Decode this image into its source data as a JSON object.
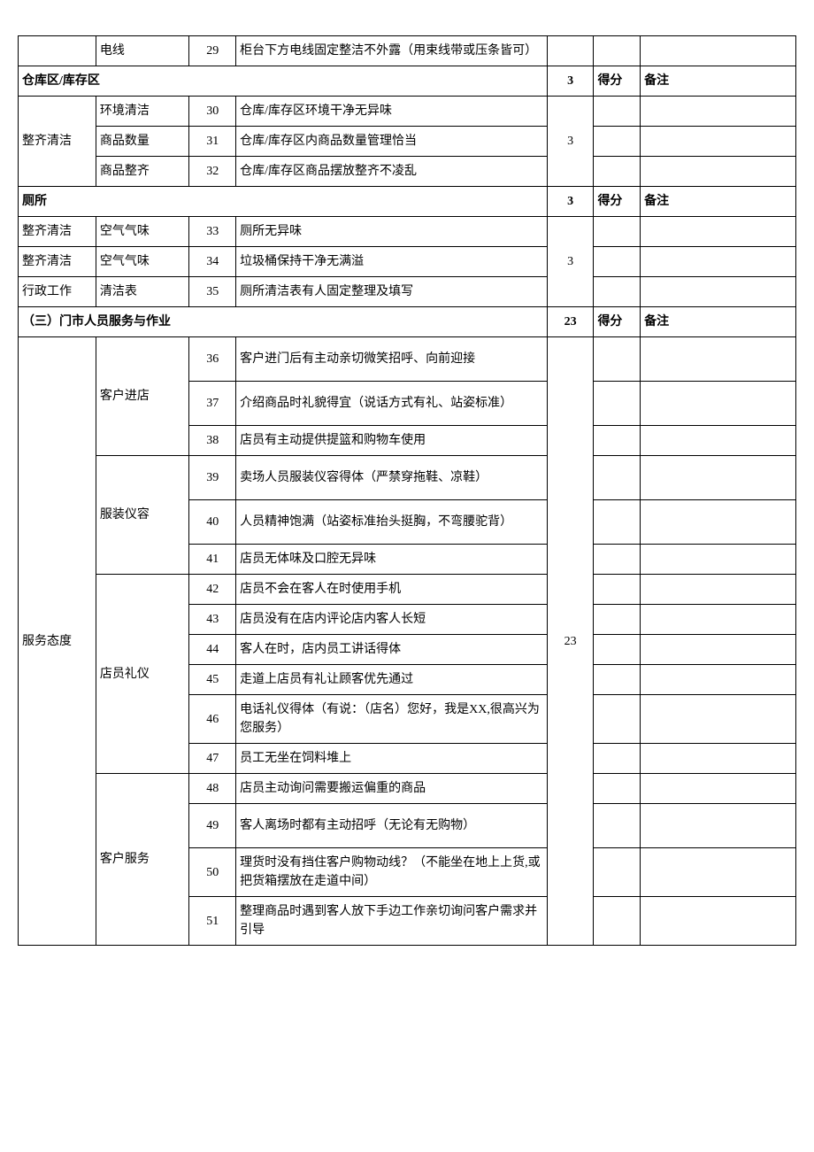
{
  "preRow": {
    "subitem": "电线",
    "num": "29",
    "desc": "柜台下方电线固定整洁不外露（用束线带或压条皆可）"
  },
  "section_warehouse": {
    "title": "仓库区/库存区",
    "points": "3",
    "score_label": "得分",
    "remark_label": "备注",
    "category": "整齐清洁",
    "group_points": "3",
    "rows": [
      {
        "subitem": "环境清洁",
        "num": "30",
        "desc": "仓库/库存区环境干净无异味"
      },
      {
        "subitem": "商品数量",
        "num": "31",
        "desc": "仓库/库存区内商品数量管理恰当"
      },
      {
        "subitem": "商品整齐",
        "num": "32",
        "desc": "仓库/库存区商品摆放整齐不凌乱"
      }
    ]
  },
  "section_toilet": {
    "title": "厕所",
    "points": "3",
    "score_label": "得分",
    "remark_label": "备注",
    "group_points": "3",
    "rows": [
      {
        "category": "整齐清洁",
        "subitem": "空气气味",
        "num": "33",
        "desc": "厕所无异味"
      },
      {
        "category": "整齐清洁",
        "subitem": "空气气味",
        "num": "34",
        "desc": "垃圾桶保持干净无满溢"
      },
      {
        "category": "行政工作",
        "subitem": "清洁表",
        "num": "35",
        "desc": "厕所清洁表有人固定整理及填写"
      }
    ]
  },
  "section_service": {
    "title": "（三）门市人员服务与作业",
    "points": "23",
    "score_label": "得分",
    "remark_label": "备注",
    "category": "服务态度",
    "group_points": "23",
    "groups": [
      {
        "subitem": "客户进店",
        "rows": [
          {
            "num": "36",
            "desc": "客户进门后有主动亲切微笑招呼、向前迎接"
          },
          {
            "num": "37",
            "desc": "介绍商品时礼貌得宜（说话方式有礼、站姿标准）"
          },
          {
            "num": "38",
            "desc": "店员有主动提供提篮和购物车使用"
          }
        ]
      },
      {
        "subitem": "服装仪容",
        "rows": [
          {
            "num": "39",
            "desc": "卖场人员服装仪容得体（严禁穿拖鞋、凉鞋）"
          },
          {
            "num": "40",
            "desc": "人员精神饱满（站姿标准抬头挺胸，不弯腰驼背）"
          },
          {
            "num": "41",
            "desc": "店员无体味及口腔无异味"
          }
        ]
      },
      {
        "subitem": "店员礼仪",
        "rows": [
          {
            "num": "42",
            "desc": "店员不会在客人在时使用手机"
          },
          {
            "num": "43",
            "desc": "店员没有在店内评论店内客人长短"
          },
          {
            "num": "44",
            "desc": "客人在时，店内员工讲话得体"
          },
          {
            "num": "45",
            "desc": "走道上店员有礼让顾客优先通过"
          },
          {
            "num": "46",
            "desc": "电话礼仪得体（有说：（店名）您好，我是XX,很高兴为您服务）"
          },
          {
            "num": "47",
            "desc": "员工无坐在饲料堆上"
          }
        ]
      },
      {
        "subitem": "客户服务",
        "rows": [
          {
            "num": "48",
            "desc": "店员主动询问需要搬运偏重的商品"
          },
          {
            "num": "49",
            "desc": "客人离场时都有主动招呼（无论有无购物）"
          },
          {
            "num": "50",
            "desc": "理货时没有挡住客户购物动线？（不能坐在地上上货,或把货箱摆放在走道中间）"
          },
          {
            "num": "51",
            "desc": "整理商品时遇到客人放下手边工作亲切询问客户需求并引导"
          }
        ]
      }
    ]
  }
}
